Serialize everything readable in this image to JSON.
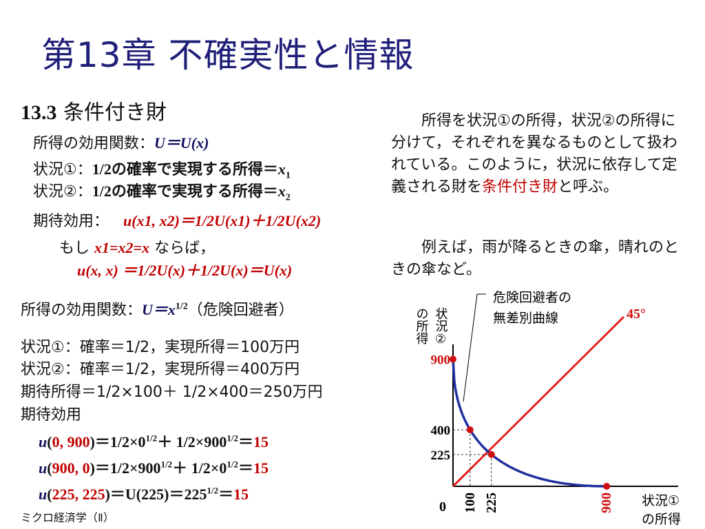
{
  "slide": {
    "title": "第13章 不確実性と情報",
    "section_num": "13.3",
    "section_title": "条件付き財",
    "footer": "ミクロ経済学（Ⅱ）"
  },
  "left": {
    "utility_fn_label": "所得の効用関数：",
    "utility_fn_formula": "U＝U(x)",
    "state1_label": "状況①：",
    "state1_text": "1/2の確率で実現する所得＝",
    "state1_var": "x",
    "state1_sub": "1",
    "state2_label": "状況②：",
    "state2_text": "1/2の確率で実現する所得＝",
    "state2_var": "x",
    "state2_sub": "2",
    "expected_utility_label": "期待効用：",
    "expected_utility_formula": "u(x1, x2)＝1/2U(x1)＋1/2U(x2)",
    "if_prefix": "もし",
    "if_formula": "x1=x2=x",
    "if_suffix": "ならば，",
    "if_result": "u(x, x) ＝1/2U(x)＋1/2U(x)＝U(x)",
    "example_fn_label": "所得の効用関数：",
    "example_fn_formula": "U＝x",
    "example_fn_exp": "1/2",
    "example_fn_note": "（危険回避者）",
    "ex_state1": "状況①：確率＝1/2，実現所得＝100万円",
    "ex_state2": "状況②：確率＝1/2，実現所得＝400万円",
    "ex_expected_income": "期待所得＝1/2×100＋ 1/2×400＝250万円",
    "ex_expected_utility_label": "期待効用",
    "eq1_lhs_u": "u",
    "eq1_args": "0, 900",
    "eq1_rhs": "＝1/2×0",
    "eq1_exp_a": "1/2",
    "eq1_mid": "＋ 1/2×900",
    "eq1_exp_b": "1/2",
    "eq1_eq": "＝",
    "eq1_result": "15",
    "eq2_lhs_u": "u",
    "eq2_args": "900, 0",
    "eq2_rhs": "＝1/2×900",
    "eq2_exp_a": "1/2",
    "eq2_mid": "＋ 1/2×0",
    "eq2_exp_b": "1/2",
    "eq2_eq": "＝",
    "eq2_result": "15",
    "eq3_lhs_u": "u",
    "eq3_args": "225, 225",
    "eq3_rhs": "＝U(225)＝225",
    "eq3_exp": "1/2",
    "eq3_eq": "＝",
    "eq3_result": "15"
  },
  "right": {
    "para1_a": "所得を状況①の所得，状況②の所得に分けて，それぞれを異なるものとして扱われている。このように，状況に依存して定義される財を",
    "para1_highlight": "条件付き財",
    "para1_b": "と呼ぶ。",
    "para2": "例えば，雨が降るときの傘，晴れのときの傘など。"
  },
  "chart_data": {
    "type": "line",
    "xlabel_line1": "状況①",
    "xlabel_line2": "の所得",
    "ylabel_col1": "の所得",
    "ylabel_col2": "状況②",
    "origin_label": "0",
    "curve_label_line1": "危険回避者の",
    "curve_label_line2": "無差別曲線",
    "line_label": "45°",
    "xlim": [
      0,
      1000
    ],
    "ylim": [
      0,
      1000
    ],
    "x_ticks": [
      "100",
      "225",
      "900"
    ],
    "y_ticks": [
      "900",
      "400",
      "225"
    ],
    "colors": {
      "curve": "#1f2f9f",
      "line": "#e02020",
      "point": "#d01010"
    },
    "series": [
      {
        "kind": "indifference-curve",
        "equation": "√x1 + √x2 = 30",
        "x_range": [
          0,
          900
        ]
      },
      {
        "kind": "45-degree-line",
        "x_range": [
          0,
          1000
        ]
      }
    ],
    "points": [
      {
        "x": 0,
        "y": 900
      },
      {
        "x": 100,
        "y": 400
      },
      {
        "x": 225,
        "y": 225
      },
      {
        "x": 900,
        "y": 0
      }
    ]
  }
}
